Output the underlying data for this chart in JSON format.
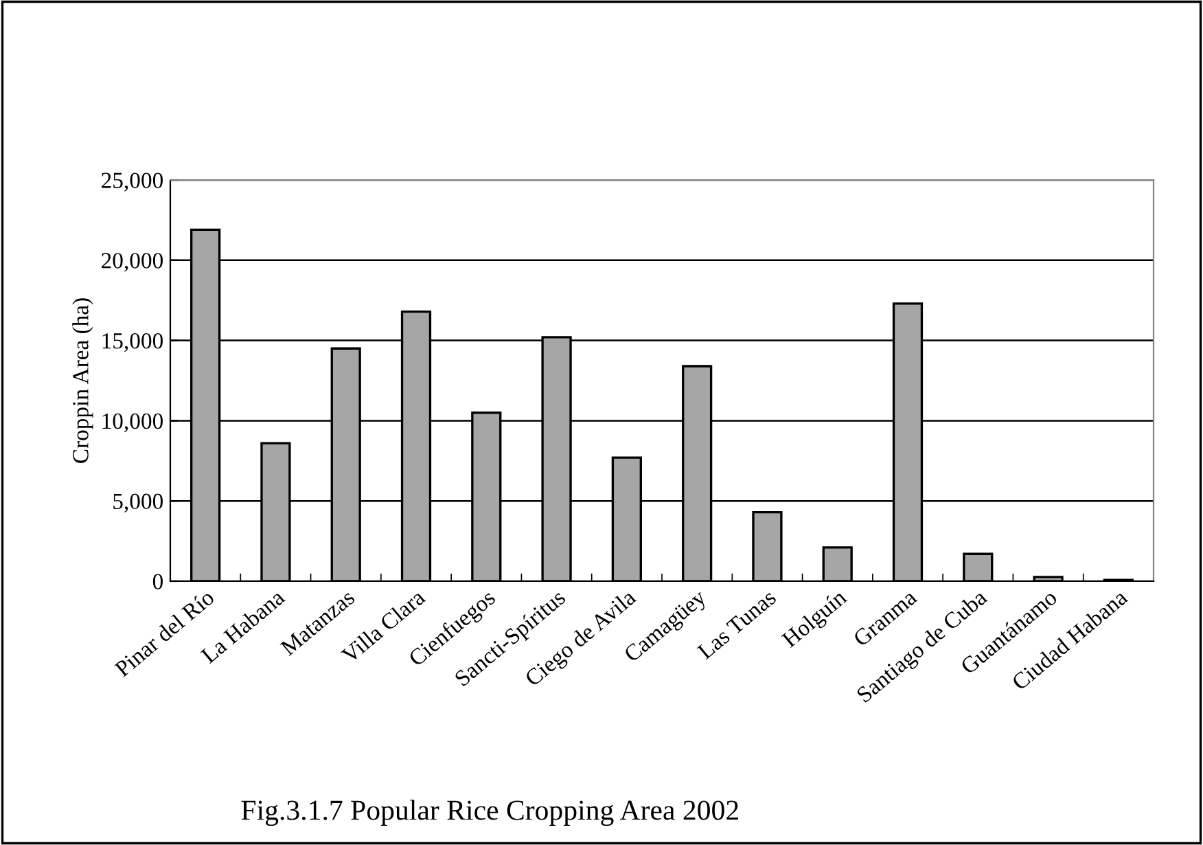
{
  "chart_data": {
    "type": "bar",
    "title": "Fig.3.1.7 Popular Rice Cropping Area 2002",
    "ylabel": "Croppin Area (ha)",
    "categories": [
      "Pinar del Río",
      "La Habana",
      "Matanzas",
      "Villa Clara",
      "Cienfuegos",
      "Sancti-Spíritus",
      "Ciego de Avila",
      "Camagüey",
      "Las Tunas",
      "Holguín",
      "Granma",
      "Santiago de Cuba",
      "Guantánamo",
      "Ciudad Habana"
    ],
    "values": [
      21900,
      8600,
      14500,
      16800,
      10500,
      15200,
      7700,
      13400,
      4300,
      2100,
      17300,
      1700,
      260,
      80
    ],
    "color": "#a6a6a6",
    "ylim": [
      0,
      25000
    ],
    "yticks": [
      {
        "value": 0,
        "label": "0"
      },
      {
        "value": 5000,
        "label": "5,000"
      },
      {
        "value": 10000,
        "label": "10,000"
      },
      {
        "value": 15000,
        "label": "15,000"
      },
      {
        "value": 20000,
        "label": "20,000"
      },
      {
        "value": 25000,
        "label": "25,000"
      }
    ],
    "grid": "y"
  }
}
